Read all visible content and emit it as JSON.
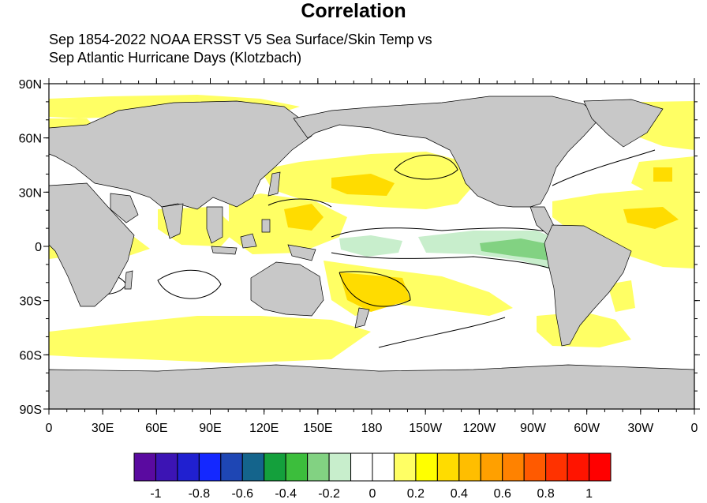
{
  "title": "Correlation",
  "subtitle_line1": "Sep 1854-2022 NOAA ERSST V5 Sea Surface/Skin Temp vs",
  "subtitle_line2": "Sep Atlantic Hurricane Days (Klotzbach)",
  "map": {
    "projection": "cylindrical-equidistant",
    "lon_range": [
      0,
      360
    ],
    "lat_range": [
      -90,
      90
    ],
    "land_color": "#c8c8c8",
    "ocean_color": "#ffffff",
    "lat_labels": [
      "90N",
      "60N",
      "30N",
      "0",
      "30S",
      "60S",
      "90S"
    ],
    "lat_values": [
      90,
      60,
      30,
      0,
      -30,
      -60,
      -90
    ],
    "lon_labels": [
      "0",
      "30E",
      "60E",
      "90E",
      "120E",
      "150E",
      "180",
      "150W",
      "120W",
      "90W",
      "60W",
      "30W",
      "0"
    ],
    "lon_values": [
      0,
      30,
      60,
      90,
      120,
      150,
      180,
      210,
      240,
      270,
      300,
      330,
      360
    ]
  },
  "colorbar": {
    "colors": [
      "#5a0aa0",
      "#3c14b4",
      "#2020d0",
      "#1428ff",
      "#1e46b4",
      "#14648c",
      "#14a03c",
      "#3cbe3c",
      "#82d282",
      "#c8eecc",
      "#ffffff",
      "#ffffff",
      "#ffff64",
      "#ffff00",
      "#ffdc00",
      "#ffbe00",
      "#ffa000",
      "#ff8200",
      "#ff5a00",
      "#ff3200",
      "#ff1400",
      "#ff0000"
    ],
    "labels": [
      "-1",
      "-0.8",
      "-0.6",
      "-0.4",
      "-0.2",
      "0",
      "0.2",
      "0.4",
      "0.6",
      "0.8",
      "1"
    ],
    "levels": [
      -1,
      -0.8,
      -0.6,
      -0.4,
      -0.2,
      0,
      0.2,
      0.4,
      0.6,
      0.8,
      1
    ]
  }
}
